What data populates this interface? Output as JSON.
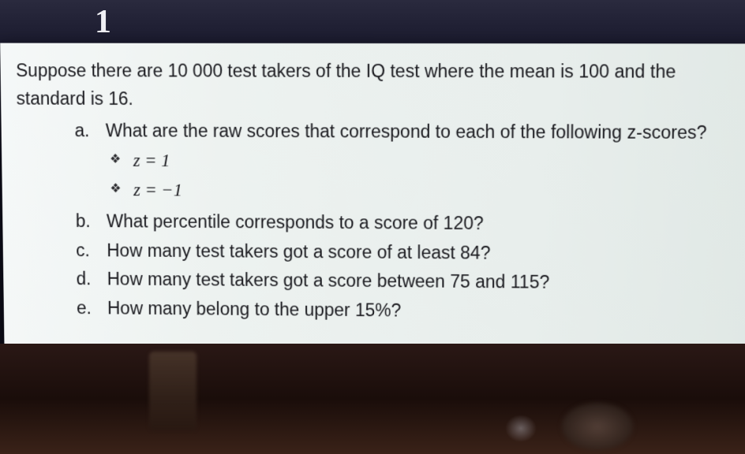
{
  "page_number": "1",
  "document": {
    "intro": "Suppose there are 10 000 test takers of the IQ test where the mean is 100 and the standard is 16.",
    "questions": {
      "a": {
        "letter": "a.",
        "text": "What are the raw scores that correspond to each of the following z-scores?",
        "sub": [
          "z = 1",
          "z = −1"
        ]
      },
      "b": {
        "letter": "b.",
        "text": "What percentile corresponds to a score of 120?"
      },
      "c": {
        "letter": "c.",
        "text": "How many test takers got a score of at least 84?"
      },
      "d": {
        "letter": "d.",
        "text": "How many test takers got a score between 75 and 115?"
      },
      "e": {
        "letter": "e.",
        "text": "How many belong to the upper 15%?"
      }
    },
    "bullet_glyph": "❖"
  },
  "colors": {
    "panel_bg": "#edf2f0",
    "text": "#1a1a1f",
    "page_number": "#f0f0f5",
    "top_bg": "#1a1a2e"
  },
  "typography": {
    "body_fontsize": 23,
    "math_family": "Times New Roman"
  }
}
